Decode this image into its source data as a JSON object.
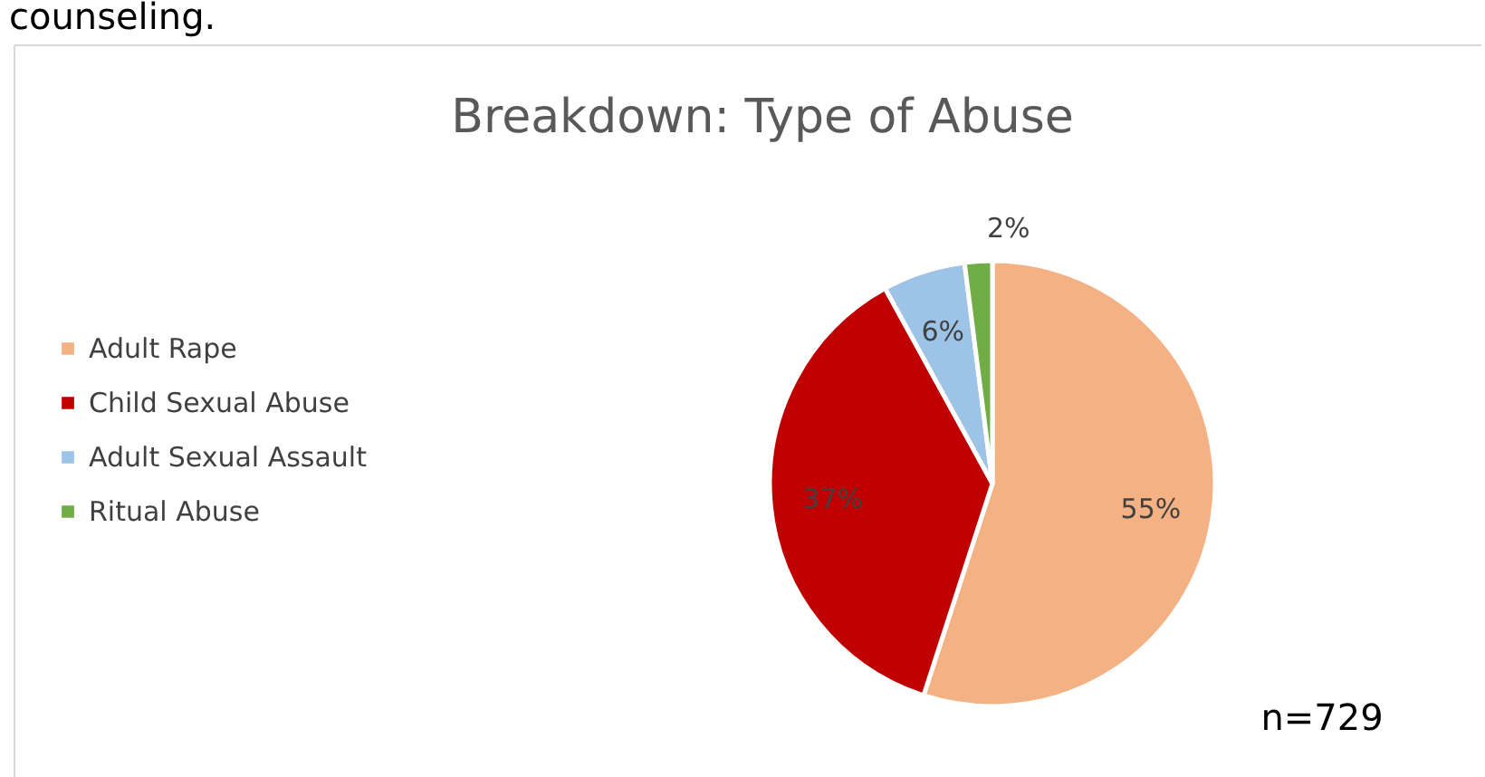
{
  "chart_data": {
    "type": "pie",
    "title": "Breakdown: Type of Abuse",
    "categories": [
      "Adult Rape",
      "Child Sexual Abuse",
      "Adult Sexual Assault",
      "Ritual Abuse"
    ],
    "values": [
      55,
      37,
      6,
      2
    ],
    "colors": [
      "#f4b183",
      "#c00000",
      "#9dc3e6",
      "#70ad47"
    ],
    "value_labels": [
      "55%",
      "37%",
      "6%",
      "2%"
    ],
    "legend": "left",
    "annotations": [
      "n=729",
      "counseling."
    ]
  }
}
